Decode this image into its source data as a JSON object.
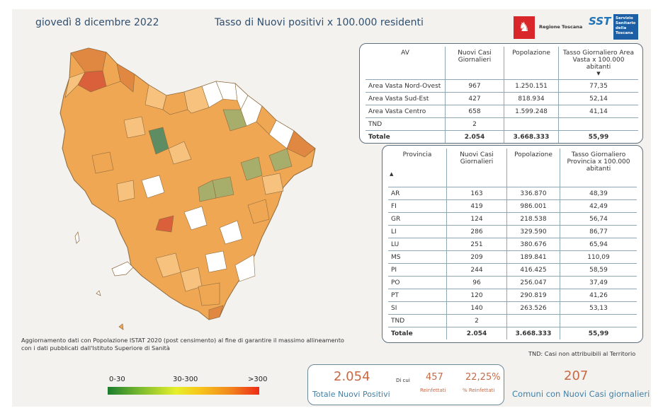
{
  "header": {
    "date": "giovedì 8 dicembre 2022",
    "title": "Tasso di Nuovi positivi x 100.000 residenti",
    "logo_regione": "Regione Toscana",
    "logo_sst_mark": "SST",
    "logo_sst_text": [
      "Servizio",
      "Sanitario",
      "della",
      "Toscana"
    ]
  },
  "map": {
    "colors": {
      "white": "#ffffff",
      "green": "#a7ad6a",
      "teal": "#5f8d63",
      "light_orange": "#f7c27d",
      "orange": "#efa753",
      "dark_orange": "#e08742",
      "red": "#d9603b",
      "border": "#8e6a3e"
    }
  },
  "av_table": {
    "headers": [
      "AV",
      "Nuovi Casi Giornalieri",
      "Popolazione",
      "Tasso Giornaliero Area Vasta x 100.000 abitanti"
    ],
    "rows": [
      [
        "Area Vasta Nord-Ovest",
        "967",
        "1.250.151",
        "77,35"
      ],
      [
        "Area Vasta Sud-Est",
        "427",
        "818.934",
        "52,14"
      ],
      [
        "Area Vasta Centro",
        "658",
        "1.599.248",
        "41,14"
      ],
      [
        "TND",
        "2",
        "",
        ""
      ]
    ],
    "total": [
      "Totale",
      "2.054",
      "3.668.333",
      "55,99"
    ]
  },
  "prov_table": {
    "headers": [
      "Provincia",
      "Nuovi Casi Giornalieri",
      "Popolazione",
      "Tasso Giornaliero Provincia x 100.000 abitanti"
    ],
    "rows": [
      [
        "AR",
        "163",
        "336.870",
        "48,39"
      ],
      [
        "FI",
        "419",
        "986.001",
        "42,49"
      ],
      [
        "GR",
        "124",
        "218.538",
        "56,74"
      ],
      [
        "LI",
        "286",
        "329.590",
        "86,77"
      ],
      [
        "LU",
        "251",
        "380.676",
        "65,94"
      ],
      [
        "MS",
        "209",
        "189.841",
        "110,09"
      ],
      [
        "PI",
        "244",
        "416.425",
        "58,59"
      ],
      [
        "PO",
        "96",
        "256.047",
        "37,49"
      ],
      [
        "PT",
        "120",
        "290.819",
        "41,26"
      ],
      [
        "SI",
        "140",
        "263.526",
        "53,13"
      ],
      [
        "TND",
        "2",
        "",
        ""
      ]
    ],
    "total": [
      "Totale",
      "2.054",
      "3.668.333",
      "55,99"
    ]
  },
  "notes": {
    "update": "Aggiornamento dati con Popolazione ISTAT 2020 (post censimento) al fine di garantire il massimo allineamento con i dati pubblicati dall'Istituto Superiore di Sanità",
    "tnd": "TND:  Casi non attribuibili al Territorio"
  },
  "legend": {
    "labels": [
      "0-30",
      "30-300",
      ">300"
    ]
  },
  "kpi": {
    "total_value": "2.054",
    "total_label": "Totale Nuovi Positivi",
    "di_cui": "Di cui",
    "reinfections_value": "457",
    "reinfections_label": "Reinfettati",
    "reinf_pct_value": "22,25%",
    "reinf_pct_label": "% Reinfettati",
    "comuni_value": "207",
    "comuni_label": "Comuni con Nuovi Casi giornalieri"
  }
}
